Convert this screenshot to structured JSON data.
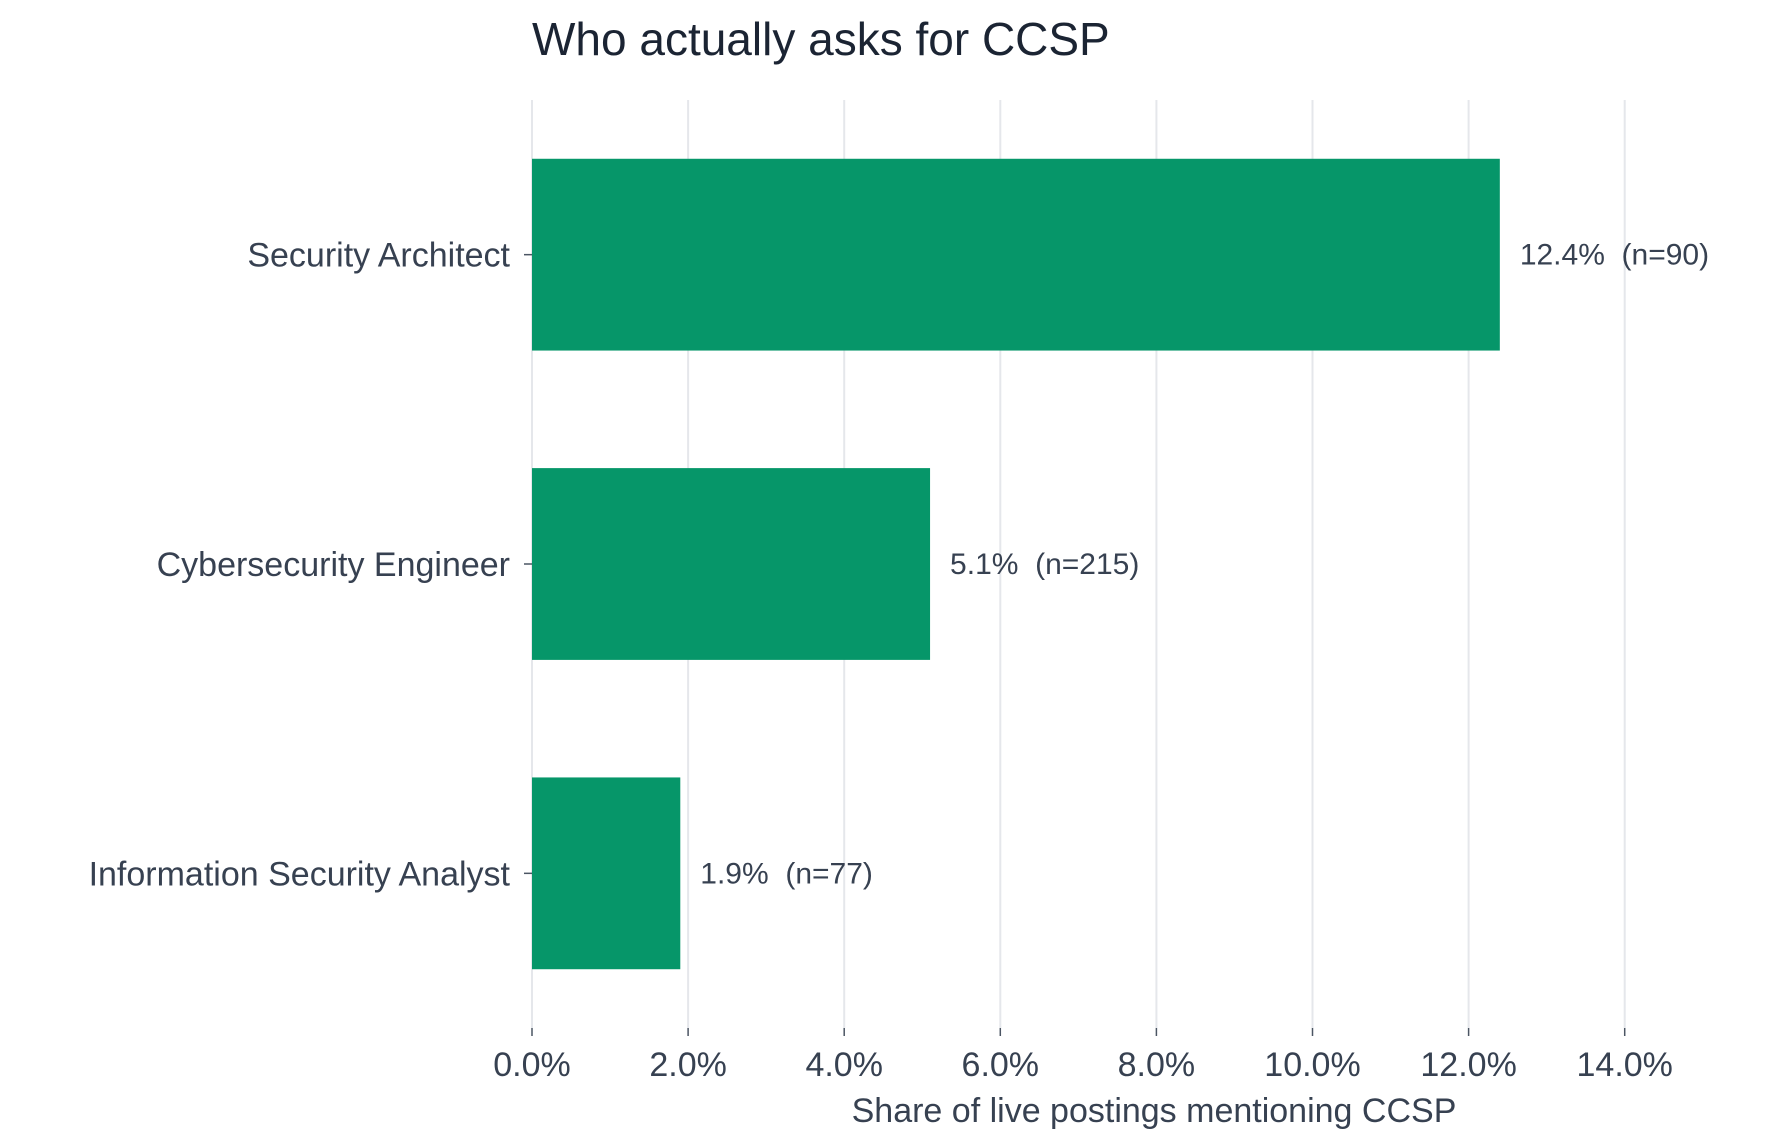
{
  "chart_data": {
    "type": "bar",
    "orientation": "horizontal",
    "title": "Who actually asks for CCSP",
    "xlabel": "Share of live postings mentioning CCSP",
    "ylabel": "",
    "categories": [
      "Security Architect",
      "Cybersecurity Engineer",
      "Information Security Analyst"
    ],
    "values": [
      12.4,
      5.1,
      1.9
    ],
    "data_labels": [
      "12.4%  (n=90)",
      "5.1%  (n=215)",
      "1.9%  (n=77)"
    ],
    "xlim": [
      0,
      15.9
    ],
    "x_ticks": [
      0,
      2,
      4,
      6,
      8,
      10,
      12,
      14
    ],
    "x_tick_labels": [
      "0.0%",
      "2.0%",
      "4.0%",
      "6.0%",
      "8.0%",
      "10.0%",
      "12.0%",
      "14.0%"
    ],
    "grid": "vertical",
    "legend": "none",
    "colors": {
      "bar": "#069669",
      "grid": "#e5e7eb",
      "text": "#374151",
      "title": "#1b2433"
    }
  }
}
